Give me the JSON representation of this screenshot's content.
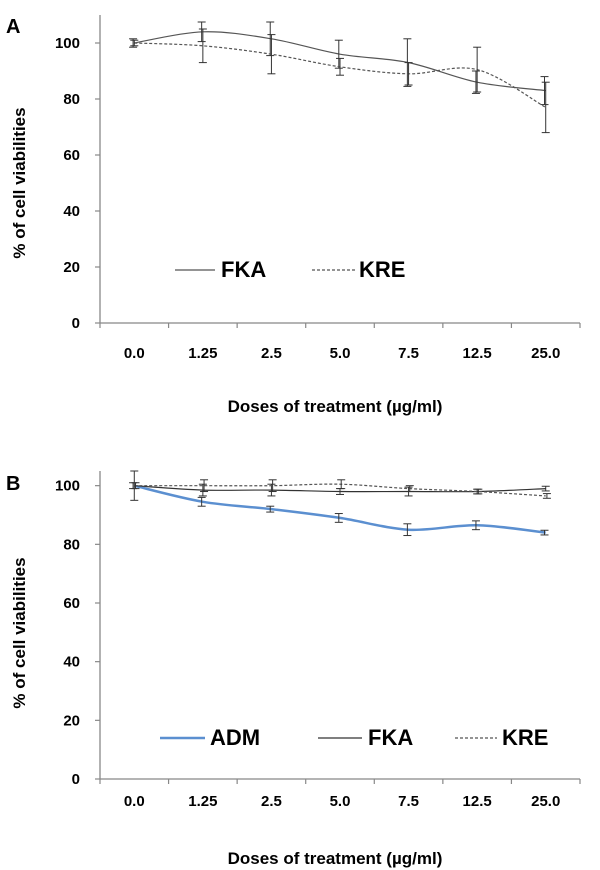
{
  "chart_data": [
    {
      "type": "line",
      "panel_label": "A",
      "categories": [
        "0.0",
        "1.25",
        "2.5",
        "5.0",
        "7.5",
        "12.5",
        "25.0"
      ],
      "xlabel": "Doses of treatment (µg/ml)",
      "ylabel": "% of cell viabilities",
      "ylim": [
        0,
        100
      ],
      "yticks": [
        "0",
        "20",
        "40",
        "60",
        "80",
        "100"
      ],
      "grid": false,
      "legend_position": "lower-left",
      "series": [
        {
          "name": "FKA",
          "color": "#555555",
          "style": "solid",
          "values": [
            100,
            104,
            101.5,
            96,
            93,
            86,
            83
          ],
          "errors": [
            1.5,
            3.5,
            6,
            5,
            8.5,
            4,
            5
          ]
        },
        {
          "name": "KRE",
          "color": "#555555",
          "style": "dashed",
          "values": [
            100,
            99,
            96,
            91.5,
            89,
            90.5,
            77
          ],
          "errors": [
            1,
            6,
            7,
            3,
            4,
            8,
            9
          ]
        }
      ]
    },
    {
      "type": "line",
      "panel_label": "B",
      "categories": [
        "0.0",
        "1.25",
        "2.5",
        "5.0",
        "7.5",
        "12.5",
        "25.0"
      ],
      "xlabel": "Doses of treatment (µg/ml)",
      "ylabel": "% of cell viabilities",
      "ylim": [
        0,
        100
      ],
      "yticks": [
        "0",
        "20",
        "40",
        "60",
        "80",
        "100"
      ],
      "grid": false,
      "legend_position": "bottom",
      "series": [
        {
          "name": "ADM",
          "color": "#5b8fd0",
          "style": "solid",
          "values": [
            100,
            94.5,
            92,
            89,
            85,
            86.5,
            84
          ],
          "errors": [
            1,
            1.5,
            1,
            1.5,
            2,
            1.5,
            0.8
          ]
        },
        {
          "name": "FKA",
          "color": "#333333",
          "style": "solid",
          "values": [
            100,
            98.5,
            98.5,
            98,
            98,
            98,
            99
          ],
          "errors": [
            5,
            2,
            2,
            1,
            1.5,
            0.8,
            0.8
          ]
        },
        {
          "name": "KRE",
          "color": "#555555",
          "style": "dashed",
          "values": [
            100,
            100,
            100,
            100.5,
            99,
            98,
            96.5
          ],
          "errors": [
            1,
            2,
            2,
            1.5,
            1,
            0.8,
            0.8
          ]
        }
      ]
    }
  ]
}
